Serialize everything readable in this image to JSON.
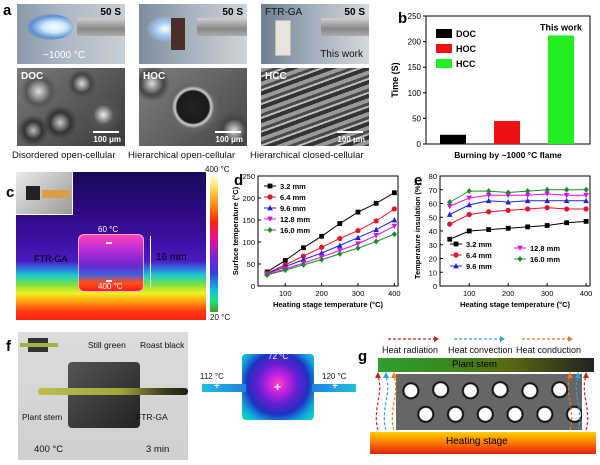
{
  "panels": {
    "a": {
      "letter": "a",
      "photos": [
        {
          "time": "50 S",
          "temp": "~1000 °C",
          "label": ""
        },
        {
          "time": "50 S",
          "label": ""
        },
        {
          "time": "50 S",
          "label": "FTR-GA",
          "note": "This work"
        }
      ],
      "sem": [
        {
          "label": "DOC",
          "scale": "100 μm",
          "caption": "Disordered open-cellular"
        },
        {
          "label": "HOC",
          "scale": "100 μm",
          "caption": "Hierarchical open-cellular"
        },
        {
          "label": "HCC",
          "scale": "100 μm",
          "caption": "Hierarchical closed-cellular"
        }
      ]
    },
    "b": {
      "letter": "b"
    },
    "c": {
      "letter": "c",
      "scale_max": "400 °C",
      "scale_min": "20 °C",
      "top_temp": "60 °C",
      "bottom_temp": "400 °C",
      "sample_label": "FTR-GA",
      "thickness": "16 mm"
    },
    "d": {
      "letter": "d"
    },
    "e": {
      "letter": "e"
    },
    "f": {
      "letter": "f",
      "still_green": "Still green",
      "roast_black": "Roast black",
      "plant_stem": "Plant stem",
      "ftrga": "FTR-GA",
      "temp": "400 °C",
      "time": "3 min",
      "thermal_left": "112 °C",
      "thermal_center": "72 °C",
      "thermal_right": "120 °C"
    },
    "g": {
      "letter": "g",
      "legend": [
        "Heat radiation",
        "Heat convection",
        "Heat conduction"
      ],
      "plant_stem": "Plant stem",
      "heating_stage": "Heating stage"
    }
  },
  "colors": {
    "doc": "#000000",
    "hoc": "#ee1111",
    "hcc": "#22ee22",
    "s1": "#000000",
    "s2": "#e8102a",
    "s3": "#2222dd",
    "s4": "#e010e0",
    "s5": "#1f8a2a",
    "radiation": "#cc2222",
    "convection": "#2aa3e0",
    "conduction": "#ee7a1a"
  },
  "chart_data": [
    {
      "panel": "b",
      "type": "bar",
      "categories": [
        "DOC",
        "HOC",
        "HCC"
      ],
      "values": [
        18,
        45,
        212
      ],
      "ylabel": "Time (S)",
      "xlabel": "Burning by ~1000 °C flame",
      "ylim": [
        0,
        250
      ],
      "yticks": [
        0,
        50,
        100,
        150,
        200,
        250
      ],
      "annotation": "This work",
      "legend": [
        "DOC",
        "HOC",
        "HCC"
      ],
      "legend_position": "top-left"
    },
    {
      "panel": "d",
      "type": "line",
      "x": [
        50,
        100,
        150,
        200,
        250,
        300,
        350,
        400
      ],
      "xlabel": "Heating stage temperature (°C)",
      "ylabel": "Surface temperature (°C)",
      "xlim": [
        25,
        410
      ],
      "ylim": [
        0,
        250
      ],
      "xticks": [
        100,
        200,
        300,
        400
      ],
      "yticks": [
        0,
        50,
        100,
        150,
        200,
        250
      ],
      "legend_position": "top-left",
      "series": [
        {
          "name": "3.2 mm",
          "values": [
            32,
            58,
            87,
            113,
            142,
            168,
            188,
            212
          ]
        },
        {
          "name": "6.4 mm",
          "values": [
            29,
            48,
            68,
            88,
            108,
            126,
            148,
            175
          ]
        },
        {
          "name": "9.6 mm",
          "values": [
            28,
            44,
            60,
            75,
            92,
            110,
            128,
            150
          ]
        },
        {
          "name": "12.8 mm",
          "values": [
            26,
            39,
            52,
            66,
            81,
            96,
            115,
            136
          ]
        },
        {
          "name": "16.0 mm",
          "values": [
            25,
            36,
            48,
            60,
            73,
            86,
            101,
            118
          ]
        }
      ]
    },
    {
      "panel": "e",
      "type": "line",
      "x": [
        50,
        100,
        150,
        200,
        250,
        300,
        350,
        400
      ],
      "xlabel": "Heating stage temperature (°C)",
      "ylabel": "Temperature insulation (%)",
      "xlim": [
        25,
        410
      ],
      "ylim": [
        0,
        80
      ],
      "xticks": [
        100,
        200,
        300,
        400
      ],
      "yticks": [
        0,
        10,
        20,
        30,
        40,
        50,
        60,
        70,
        80
      ],
      "legend_position": "bottom",
      "series": [
        {
          "name": "3.2 mm",
          "values": [
            34,
            40,
            41,
            42,
            43,
            44,
            46,
            47
          ]
        },
        {
          "name": "6.4 mm",
          "values": [
            45,
            52,
            54,
            55,
            56,
            57,
            56,
            56
          ]
        },
        {
          "name": "9.6 mm",
          "values": [
            52,
            59,
            62,
            61,
            62,
            62,
            62,
            62
          ]
        },
        {
          "name": "12.8 mm",
          "values": [
            58,
            64,
            66,
            66,
            66,
            67,
            66,
            66
          ]
        },
        {
          "name": "16.0 mm",
          "values": [
            61,
            69,
            69,
            68,
            69,
            70,
            70,
            70
          ]
        }
      ]
    }
  ]
}
